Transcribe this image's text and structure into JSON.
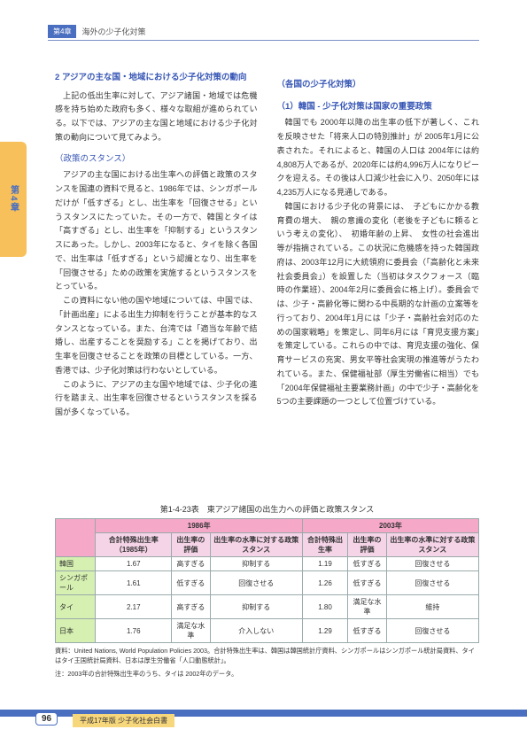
{
  "header": {
    "tag": "第4章",
    "title": "海外の少子化対策"
  },
  "side_tab": "第4章",
  "left": {
    "section_num": "2",
    "section_title": "アジアの主な国・地域における少子化対策の動向",
    "p1": "上記の低出生率に対して、アジア諸国・地域では危機感を持ち始めた政府も多く、様々な取組が進められている。以下では、アジアの主な国と地域における少子化対策の動向について見てみよう。",
    "sub1": "（政策のスタンス）",
    "p2": "アジアの主な国における出生率への評価と政策のスタンスを国連の資料で見ると、1986年では、シンガポールだけが「低すぎる」とし、出生率を「回復させる」というスタンスにたっていた。その一方で、韓国とタイは「高すぎる」とし、出生率を「抑制する」というスタンスにあった。しかし、2003年になると、タイを除く各国で、出生率は「低すぎる」という認識となり、出生率を「回復させる」ための政策を実施するというスタンスをとっている。",
    "p3": "この資料にない他の国や地域については、中国では、「計画出産」による出生力抑制を行うことが基本的なスタンスとなっている。また、台湾では「適当な年齢で結婚し、出産することを奨励する」ことを掲げており、出生率を回復させることを政策の目標としている。一方、香港では、少子化対策は行わないとしている。",
    "p4": "このように、アジアの主な国や地域では、少子化の進行を踏まえ、出生率を回復させるというスタンスを採る国が多くなっている。"
  },
  "right": {
    "sub0": "（各国の少子化対策）",
    "sub1": "（1）韓国 - 少子化対策は国家の重要政策",
    "p1": "韓国でも 2000年以降の出生率の低下が著しく、これを反映させた「将来人口の特別推計」が 2005年1月に公表された。それによると、韓国の人口は 2004年には約4,808万人であるが、2020年には約4,996万人になりピークを迎える。その後は人口減少社会に入り、2050年には4,235万人になる見通しである。",
    "p2": "韓国における少子化の背景には、　子どもにかかる教育費の増大、　親の意識の変化（老後を子どもに頼るという考えの変化）、　初婚年齢の上昇、　女性の社会進出等が指摘されている。この状況に危機感を持った韓国政府は、2003年12月に大統領府に委員会（「高齢化と未来社会委員会」）を設置した（当初はタスクフォース（臨時の作業班）、2004年2月に委員会に格上げ）。委員会では、少子・高齢化等に関わる中長期的な計画の立案等を行っており、2004年1月には「少子・高齢社会対応のための国家戦略」を策定し、同年6月には「育児支援方案」を策定している。これらの中では、育児支援の強化、保育サービスの充実、男女平等社会実現の推進等がうたわれている。また、保健福祉部（厚生労働省に相当）でも「2004年保健福祉主要業務計画」の中で少子・高齢化を5つの主要課題の一つとして位置づけている。"
  },
  "table": {
    "caption": "第1-4-23表　東アジア諸国の出生力への評価と政策スタンス",
    "y1": "1986年",
    "y2": "2003年",
    "h": [
      "",
      "合計特殊出生率（1985年）",
      "出生率の評価",
      "出生率の水準に対する政策スタンス",
      "合計特殊出生率",
      "出生率の評価",
      "出生率の水準に対する政策スタンス"
    ],
    "rows": [
      [
        "韓国",
        "1.67",
        "高すぎる",
        "抑制する",
        "1.19",
        "低すぎる",
        "回復させる"
      ],
      [
        "シンガポール",
        "1.61",
        "低すぎる",
        "回復させる",
        "1.26",
        "低すぎる",
        "回復させる"
      ],
      [
        "タイ",
        "2.17",
        "高すぎる",
        "抑制する",
        "1.80",
        "満足な水準",
        "維持"
      ],
      [
        "日本",
        "1.76",
        "満足な水準",
        "介入しない",
        "1.29",
        "低すぎる",
        "回復させる"
      ]
    ],
    "note1": "資料：United Nations, World Population Policies 2003。合計特殊出生率は、韓国は韓国統計庁資料、シンガポールはシンガポール統計局資料、タイはタイ王国統計局資料、日本は厚生労働省「人口動態統計」。",
    "note2": "注：2003年の合計特殊出生率のうち、タイは 2002年のデータ。"
  },
  "footer": {
    "page": "96",
    "note": "平成17年版 少子化社会白書"
  }
}
